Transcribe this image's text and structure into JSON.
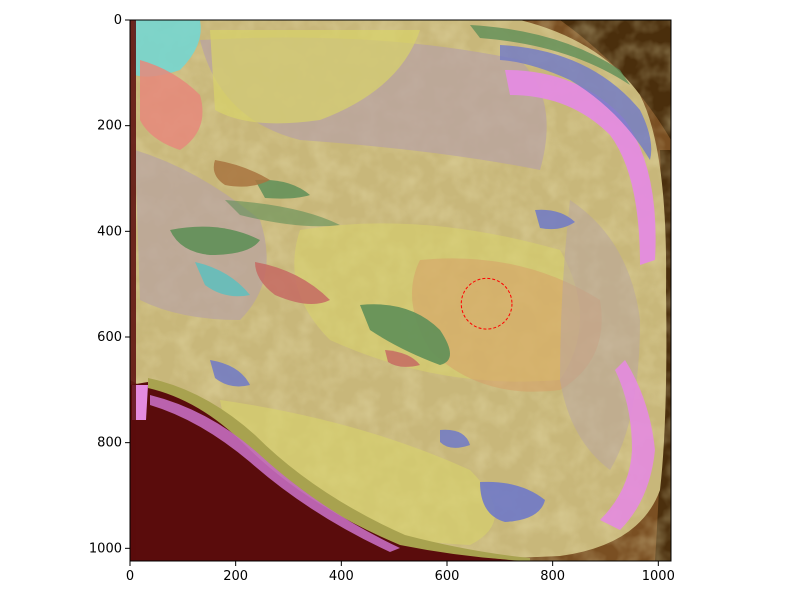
{
  "chart_data": {
    "type": "heatmap",
    "title": "",
    "xlabel": "",
    "ylabel": "",
    "xlim": [
      0,
      1024
    ],
    "ylim": [
      1024,
      0
    ],
    "xticks": [
      0,
      200,
      400,
      600,
      800,
      1000
    ],
    "yticks": [
      0,
      200,
      400,
      600,
      800,
      1000
    ],
    "xtick_labels": [
      "0",
      "200",
      "400",
      "600",
      "800",
      "1000"
    ],
    "ytick_labels": [
      "0",
      "200",
      "400",
      "600",
      "800",
      "1000"
    ],
    "grid": false,
    "annotations": [
      {
        "type": "circle",
        "center": [
          675,
          537
        ],
        "radius": 48,
        "color": "#ff0000",
        "style": "dashed"
      }
    ]
  },
  "colors": {
    "base": "#c8b77a",
    "yellow": "#d8d36a",
    "mauve": "#b8a3a3",
    "magenta": "#e48be0",
    "green": "#5f8f58",
    "blue": "#6f79c8",
    "cyan": "#76d6d0",
    "red": "#c56a63",
    "salmon": "#e6887b",
    "orange": "#d7a067",
    "olive": "#a8a24f",
    "dark": "#5a0c0c",
    "brown": "#5b3a10",
    "circle": "#ff0000"
  }
}
